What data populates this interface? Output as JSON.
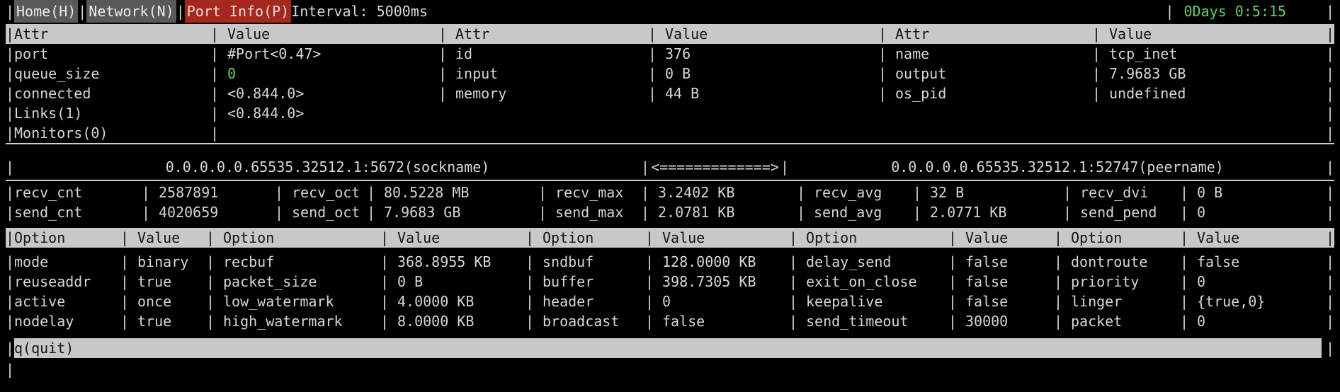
{
  "topbar": {
    "tabs": [
      {
        "label": "Home(H)"
      },
      {
        "label": "Network(N)"
      },
      {
        "label": "Port Info(P)"
      }
    ],
    "interval": "Interval: 5000ms",
    "uptime": "0Days 0:5:15"
  },
  "attr_table": {
    "headers": [
      "Attr",
      "Value",
      "Attr",
      "Value",
      "Attr",
      "Value"
    ],
    "rows": [
      {
        "cells": [
          "port",
          "#Port<0.47>",
          "id",
          "376",
          "name",
          "tcp_inet"
        ]
      },
      {
        "cells": [
          "queue_size",
          "0",
          "input",
          "0 B",
          "output",
          "7.9683 GB"
        ]
      },
      {
        "cells": [
          "connected",
          "<0.844.0>",
          "memory",
          "44 B",
          "os_pid",
          "undefined"
        ]
      },
      {
        "cells": [
          "Links(1)",
          "<0.844.0>"
        ]
      },
      {
        "cells": [
          "Monitors(0)",
          ""
        ]
      }
    ]
  },
  "socket_line": {
    "sockname": "0.0.0.0.0.65535.32512.1:5672(sockname)",
    "arrow": "<=============>",
    "peername": "0.0.0.0.0.65535.32512.1:52747(peername)"
  },
  "stats_table": {
    "rows": [
      {
        "cells": [
          "recv_cnt",
          "2587891",
          "recv_oct",
          "80.5228 MB",
          "recv_max",
          "3.2402 KB",
          "recv_avg",
          "32 B",
          "recv_dvi",
          "0 B"
        ]
      },
      {
        "cells": [
          "send_cnt",
          "4020659",
          "send_oct",
          "7.9683 GB",
          "send_max",
          "2.0781 KB",
          "send_avg",
          "2.0771 KB",
          "send_pend",
          "0"
        ]
      }
    ]
  },
  "option_table": {
    "headers": [
      "Option",
      "Value",
      "Option",
      "Value",
      "Option",
      "Value",
      "Option",
      "Value",
      "Option",
      "Value"
    ],
    "rows": [
      {
        "cells": [
          "mode",
          "binary",
          "recbuf",
          "368.8955 KB",
          "sndbuf",
          "128.0000 KB",
          "delay_send",
          "false",
          "dontroute",
          "false"
        ]
      },
      {
        "cells": [
          "reuseaddr",
          "true",
          "packet_size",
          "0 B",
          "buffer",
          "398.7305 KB",
          "exit_on_close",
          "false",
          "priority",
          "0"
        ]
      },
      {
        "cells": [
          "active",
          "once",
          "low_watermark",
          "4.0000 KB",
          "header",
          "0",
          "keepalive",
          "false",
          "linger",
          "{true,0}"
        ]
      },
      {
        "cells": [
          "nodelay",
          "true",
          "high_watermark",
          "8.0000 KB",
          "broadcast",
          "false",
          "send_timeout",
          "30000",
          "packet",
          "0"
        ]
      }
    ]
  },
  "footer": {
    "quit_label": "q(quit)"
  },
  "colors": {
    "background": "#000000",
    "text": "#d6d6d6",
    "header_bg": "#c8c8c8",
    "tab_bg": "#595959",
    "active_tab_bg": "#a5281e",
    "green": "#5dd65d"
  }
}
